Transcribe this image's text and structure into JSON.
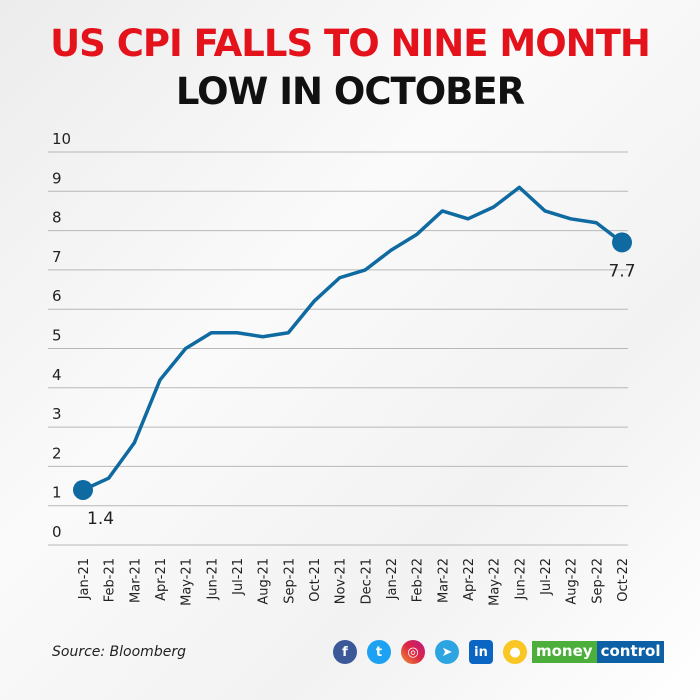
{
  "title_line1": "US CPI FALLS TO NINE MONTH",
  "title_line2": "LOW IN OCTOBER",
  "source": "Source: Bloomberg",
  "brand": {
    "part1": "money",
    "part2": "control"
  },
  "social_icons": [
    "facebook-icon",
    "twitter-icon",
    "instagram-icon",
    "telegram-icon",
    "linkedin-icon",
    "koo-icon"
  ],
  "colors": {
    "line": "#0e6aa0",
    "title_red": "#e3121b",
    "brand_green": "#4caf3c",
    "brand_blue": "#0d5fa6"
  },
  "chart_data": {
    "type": "line",
    "categories": [
      "Jan-21",
      "Feb-21",
      "Mar-21",
      "Apr-21",
      "May-21",
      "Jun-21",
      "Jul-21",
      "Aug-21",
      "Sep-21",
      "Oct-21",
      "Nov-21",
      "Dec-21",
      "Jan-22",
      "Feb-22",
      "Mar-22",
      "Apr-22",
      "May-22",
      "Jun-22",
      "Jul-22",
      "Aug-22",
      "Sep-22",
      "Oct-22"
    ],
    "values": [
      1.4,
      1.7,
      2.6,
      4.2,
      5.0,
      5.4,
      5.4,
      5.3,
      5.4,
      6.2,
      6.8,
      7.0,
      7.5,
      7.9,
      8.5,
      8.3,
      8.6,
      9.1,
      8.5,
      8.3,
      8.2,
      7.7
    ],
    "ylim": [
      0,
      10
    ],
    "yticks": [
      "0",
      "1",
      "2",
      "3",
      "4",
      "5",
      "6",
      "7",
      "8",
      "9",
      "10"
    ],
    "grid": true,
    "annotations": [
      {
        "category": "Jan-21",
        "label": "1.4"
      },
      {
        "category": "Oct-22",
        "label": "7.7"
      }
    ]
  }
}
